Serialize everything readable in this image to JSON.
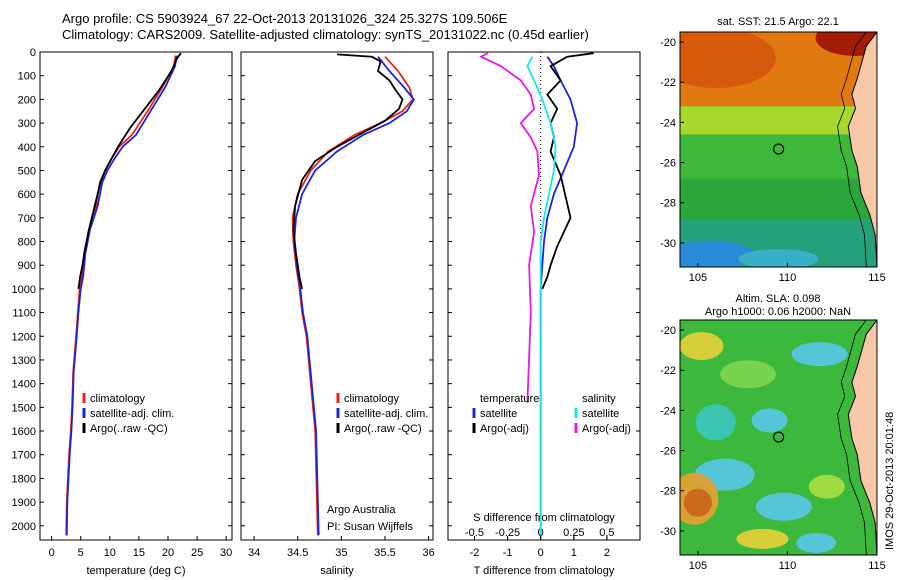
{
  "title_line1": "Argo profile: CS 5903924_67 22-Oct-2013 20131026_324 25.327S 109.506E",
  "title_line2": "Climatology: CARS2009. Satellite-adjusted climatology: synTS_20131022.nc (0.45d earlier)",
  "sst_title": "sat. SST: 21.5 Argo: 22.1",
  "sla_title1": "Altim. SLA: 0.098",
  "sla_title2": "Argo h1000: 0.06 h2000: NaN",
  "credit": "IMOS 29-Oct-2013 20:01:48",
  "colors": {
    "climatology": "#e8231a",
    "satellite": "#1a26d6",
    "argo": "#000000",
    "sat_salinity": "#19e6e6",
    "argo_salinity": "#e619e6"
  },
  "chart_data": [
    {
      "type": "line",
      "id": "temperature",
      "xlabel": "temperature (deg C)",
      "ylabel": "",
      "xlim": [
        -2,
        31
      ],
      "ylim": [
        2060,
        0
      ],
      "xticks": [
        0,
        5,
        10,
        15,
        20,
        25,
        30
      ],
      "yticks": [
        0,
        100,
        200,
        300,
        400,
        500,
        600,
        700,
        800,
        900,
        1000,
        1100,
        1200,
        1300,
        1400,
        1500,
        1600,
        1700,
        1800,
        1900,
        2000
      ],
      "legend": {
        "position": "bottom-left",
        "entries": [
          "climatology",
          "satellite-adj. clim.",
          "Argo(..raw -QC)"
        ]
      },
      "series": [
        {
          "name": "climatology",
          "color_key": "climatology",
          "x": [
            21.3,
            21.0,
            19.0,
            16.5,
            13.8,
            11.6,
            10.3,
            9.2,
            8.3,
            7.6,
            6.4,
            5.6,
            5.2,
            4.8,
            4.5,
            4.2,
            3.7,
            3.5,
            3.3,
            3.0,
            2.8,
            2.6,
            2.5
          ],
          "y": [
            15,
            60,
            150,
            250,
            350,
            400,
            450,
            500,
            550,
            650,
            750,
            850,
            950,
            1000,
            1100,
            1200,
            1350,
            1500,
            1600,
            1700,
            1800,
            1900,
            2040
          ]
        },
        {
          "name": "satellite-adj. clim.",
          "color_key": "satellite",
          "x": [
            21.5,
            21.2,
            19.5,
            17.0,
            14.5,
            12.2,
            10.8,
            9.6,
            8.7,
            7.9,
            6.6,
            5.8,
            5.4,
            5.0,
            4.6,
            4.3,
            3.8,
            3.6,
            3.4,
            3.1,
            2.9,
            2.7,
            2.6
          ],
          "y": [
            15,
            60,
            150,
            250,
            350,
            400,
            450,
            500,
            550,
            650,
            750,
            850,
            950,
            1000,
            1100,
            1200,
            1350,
            1500,
            1600,
            1700,
            1800,
            1900,
            2040
          ]
        },
        {
          "name": "Argo(..raw -QC)",
          "color_key": "argo",
          "x": [
            22.2,
            21.6,
            20.6,
            18.5,
            16.0,
            13.5,
            11.4,
            10.3,
            9.2,
            8.4,
            7.4,
            6.4,
            5.6,
            5.3,
            4.9,
            4.6
          ],
          "y": [
            5,
            25,
            80,
            160,
            240,
            320,
            400,
            450,
            500,
            550,
            650,
            750,
            850,
            900,
            950,
            1000
          ]
        }
      ]
    },
    {
      "type": "line",
      "id": "salinity",
      "xlabel": "salinity",
      "xlim": [
        33.85,
        36.05
      ],
      "ylim": [
        2060,
        0
      ],
      "xticks": [
        34,
        34.5,
        35,
        35.5,
        36
      ],
      "xticklabels": [
        "34",
        "34.5",
        "35",
        "35.5",
        "36"
      ],
      "legend": {
        "position": "bottom-left",
        "entries": [
          "climatology",
          "satellite-adj. clim.",
          "Argo(..raw -QC)"
        ]
      },
      "annotation": [
        "Argo Australia",
        "PI: Susan Wijffels"
      ],
      "series": [
        {
          "name": "climatology",
          "color_key": "climatology",
          "x": [
            35.5,
            35.65,
            35.78,
            35.82,
            35.7,
            35.45,
            35.15,
            34.85,
            34.65,
            34.5,
            34.44,
            34.45,
            34.48,
            34.52,
            34.55,
            34.6,
            34.65,
            34.7,
            34.73
          ],
          "y": [
            20,
            80,
            150,
            200,
            250,
            300,
            350,
            420,
            500,
            600,
            700,
            800,
            900,
            1000,
            1100,
            1200,
            1400,
            1600,
            2040
          ]
        },
        {
          "name": "satellite-adj. clim.",
          "color_key": "satellite",
          "x": [
            35.42,
            35.55,
            35.72,
            35.83,
            35.75,
            35.55,
            35.25,
            34.95,
            34.7,
            34.55,
            34.48,
            34.46,
            34.49,
            34.53,
            34.56,
            34.61,
            34.66,
            34.71,
            34.74
          ],
          "y": [
            20,
            80,
            150,
            200,
            250,
            300,
            350,
            420,
            500,
            600,
            700,
            800,
            900,
            1000,
            1100,
            1200,
            1400,
            1600,
            2040
          ]
        },
        {
          "name": "Argo(..raw -QC)",
          "color_key": "argo",
          "x": [
            34.95,
            35.35,
            35.45,
            35.42,
            35.55,
            35.62,
            35.7,
            35.66,
            35.5,
            35.25,
            34.95,
            34.7,
            34.55,
            34.47,
            34.45,
            34.48,
            34.52,
            34.55
          ],
          "y": [
            10,
            20,
            40,
            80,
            120,
            160,
            200,
            240,
            290,
            340,
            400,
            460,
            540,
            650,
            750,
            850,
            950,
            1000
          ]
        }
      ]
    },
    {
      "type": "line",
      "id": "differences",
      "xlabel": "T difference from climatology",
      "xlabel_top": "S difference from climatology",
      "xlim": [
        -2.8,
        3.0
      ],
      "ylim": [
        2060,
        0
      ],
      "xticks": [
        -2,
        -1,
        0,
        1,
        2
      ],
      "xticks_top": [
        -0.5,
        -0.25,
        0,
        0.25,
        0.5
      ],
      "legend": {
        "position": "bottom",
        "entries": [
          [
            "temperature",
            "satellite",
            "Argo(-adj)"
          ],
          [
            "salinity",
            "satellite",
            "Argo(-adj)"
          ]
        ]
      },
      "series": [
        {
          "name": "satellite",
          "group": "temperature",
          "color_key": "satellite",
          "x": [
            0.2,
            0.4,
            0.6,
            0.9,
            1.1,
            1.0,
            0.7,
            0.4,
            0.2,
            0.1,
            0.05,
            0.0,
            0.0,
            0.0,
            0.0,
            0.0
          ],
          "y": [
            20,
            60,
            120,
            200,
            300,
            400,
            500,
            600,
            700,
            800,
            900,
            1000,
            1200,
            1400,
            1700,
            2040
          ]
        },
        {
          "name": "Argo(-adj)",
          "group": "temperature",
          "color_key": "argo",
          "x": [
            1.6,
            0.8,
            0.3,
            0.6,
            0.2,
            0.5,
            0.3,
            0.4,
            0.3,
            0.6,
            0.9,
            0.7,
            0.5,
            0.3,
            0.2,
            0.05
          ],
          "y": [
            5,
            20,
            60,
            120,
            180,
            240,
            300,
            360,
            420,
            520,
            700,
            760,
            820,
            900,
            950,
            1000
          ]
        },
        {
          "name": "satellite",
          "group": "salinity",
          "color_key": "sat_salinity",
          "x": [
            -0.25,
            -0.4,
            -0.2,
            0.05,
            0.3,
            0.45,
            0.4,
            0.25,
            0.1,
            0.0,
            0.0,
            0.0,
            0.0,
            0.0
          ],
          "y": [
            20,
            60,
            120,
            200,
            300,
            400,
            500,
            600,
            700,
            800,
            1000,
            1200,
            1600,
            2040
          ]
        },
        {
          "name": "Argo(-adj)",
          "group": "salinity",
          "color_key": "argo_salinity",
          "x": [
            -1.6,
            -1.8,
            -1.2,
            -0.6,
            -0.3,
            -0.2,
            -0.6,
            -0.3,
            -0.1,
            -0.05,
            -0.3,
            -0.2,
            -0.35,
            -0.3,
            -0.4
          ],
          "y": [
            5,
            20,
            60,
            120,
            180,
            240,
            300,
            360,
            420,
            520,
            650,
            760,
            900,
            1100,
            1480
          ]
        }
      ]
    },
    {
      "type": "heatmap",
      "id": "sst_map",
      "xlim": [
        104,
        115
      ],
      "ylim": [
        -31.2,
        -19.5
      ],
      "xticks": [
        105,
        110,
        115
      ],
      "yticks": [
        -20,
        -22,
        -24,
        -26,
        -28,
        -30
      ],
      "marker": {
        "lon": 109.506,
        "lat": -25.327
      }
    },
    {
      "type": "heatmap",
      "id": "sla_map",
      "xlim": [
        104,
        115
      ],
      "ylim": [
        -31.2,
        -19.5
      ],
      "xticks": [
        105,
        110,
        115
      ],
      "yticks": [
        -20,
        -22,
        -24,
        -26,
        -28,
        -30
      ],
      "marker": {
        "lon": 109.506,
        "lat": -25.327
      }
    }
  ]
}
